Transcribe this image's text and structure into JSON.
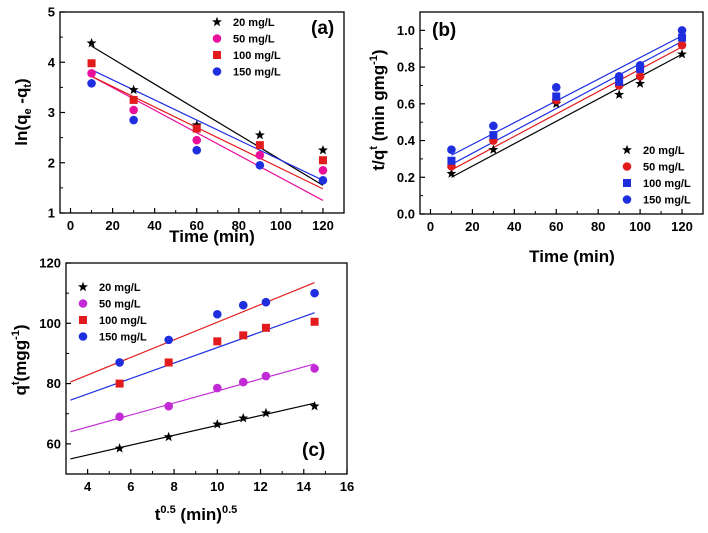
{
  "chart_data": [
    {
      "type": "scatter",
      "panel_label": "(a)",
      "title": "",
      "xlabel": "Time (min)",
      "ylabel_parts": [
        "ln(q",
        "e",
        " -q",
        "t",
        ")"
      ],
      "xlim": [
        -5,
        130
      ],
      "ylim": [
        1,
        5
      ],
      "xticks": [
        0,
        20,
        40,
        60,
        80,
        100,
        120
      ],
      "yticks": [
        1,
        2,
        3,
        4,
        5
      ],
      "grid": false,
      "legend_position": "top-right",
      "series": [
        {
          "name": "20 mg/L",
          "marker": "star",
          "color": "#000000",
          "x": [
            10,
            30,
            60,
            90,
            120
          ],
          "y": [
            4.38,
            3.45,
            2.75,
            2.55,
            2.25
          ],
          "fit": [
            [
              10,
              4.32
            ],
            [
              120,
              1.55
            ]
          ]
        },
        {
          "name": "50 mg/L",
          "marker": "circle",
          "color": "#e8109b",
          "x": [
            10,
            30,
            60,
            90,
            120
          ],
          "y": [
            3.78,
            3.05,
            2.45,
            2.15,
            1.85
          ],
          "fit": [
            [
              10,
              3.72
            ],
            [
              120,
              1.25
            ]
          ]
        },
        {
          "name": "100 mg/L",
          "marker": "square",
          "color": "#e21c1c",
          "x": [
            10,
            30,
            60,
            90,
            120
          ],
          "y": [
            3.98,
            3.25,
            2.68,
            2.35,
            2.05
          ],
          "fit": [
            [
              10,
              3.72
            ],
            [
              120,
              1.48
            ]
          ]
        },
        {
          "name": "150 mg/L",
          "marker": "circle",
          "color": "#1f2fe0",
          "x": [
            10,
            30,
            60,
            90,
            120
          ],
          "y": [
            3.58,
            2.85,
            2.25,
            1.95,
            1.65
          ],
          "fit": [
            [
              10,
              3.85
            ],
            [
              120,
              1.65
            ]
          ]
        }
      ]
    },
    {
      "type": "scatter",
      "panel_label": "(b)",
      "title": "",
      "xlabel": "Time (min)",
      "ylabel_parts": [
        "t/q",
        "t",
        " (min gmg",
        "-1",
        ")"
      ],
      "xlim": [
        -5,
        130
      ],
      "ylim": [
        0,
        1.1
      ],
      "xticks": [
        0,
        20,
        40,
        60,
        80,
        100,
        120
      ],
      "yticks": [
        0.0,
        0.2,
        0.4,
        0.6,
        0.8,
        1.0
      ],
      "grid": false,
      "legend_position": "bottom-right",
      "series": [
        {
          "name": "20 mg/L",
          "marker": "star",
          "color": "#000000",
          "x": [
            10,
            30,
            60,
            90,
            100,
            120
          ],
          "y": [
            0.22,
            0.35,
            0.6,
            0.65,
            0.71,
            0.87
          ],
          "fit": [
            [
              10,
              0.2
            ],
            [
              120,
              0.87
            ]
          ]
        },
        {
          "name": "50 mg/L",
          "marker": "circle",
          "color": "#e21c1c",
          "x": [
            10,
            30,
            60,
            90,
            100,
            120
          ],
          "y": [
            0.26,
            0.4,
            0.62,
            0.7,
            0.75,
            0.92
          ],
          "fit": [
            [
              10,
              0.24
            ],
            [
              120,
              0.91
            ]
          ]
        },
        {
          "name": "100 mg/L",
          "marker": "square",
          "color": "#1f2fe0",
          "x": [
            10,
            30,
            60,
            90,
            100,
            120
          ],
          "y": [
            0.29,
            0.43,
            0.64,
            0.72,
            0.79,
            0.96
          ],
          "fit": [
            [
              10,
              0.27
            ],
            [
              120,
              0.94
            ]
          ]
        },
        {
          "name": "150 mg/L",
          "marker": "circle",
          "color": "#1f2fe0",
          "x": [
            10,
            30,
            60,
            90,
            100,
            120
          ],
          "y": [
            0.35,
            0.48,
            0.69,
            0.75,
            0.81,
            1.0
          ],
          "fit": [
            [
              10,
              0.32
            ],
            [
              120,
              0.97
            ]
          ]
        }
      ]
    },
    {
      "type": "scatter",
      "panel_label": "(c)",
      "title": "",
      "xlabel_parts": [
        "t",
        "0.5",
        " (min)",
        "0.5"
      ],
      "ylabel_parts": [
        "q",
        "t",
        "(mgg",
        "-1",
        ")"
      ],
      "xlim": [
        3,
        16
      ],
      "ylim": [
        50,
        120
      ],
      "xticks": [
        4,
        6,
        8,
        10,
        12,
        14,
        16
      ],
      "yticks": [
        60,
        80,
        100,
        120
      ],
      "grid": false,
      "legend_position": "top-left",
      "series": [
        {
          "name": "20 mg/L",
          "marker": "star",
          "color": "#000000",
          "x": [
            5.48,
            7.75,
            10.0,
            11.2,
            12.25,
            14.5
          ],
          "y": [
            58.5,
            62.3,
            66.5,
            68.5,
            70.2,
            72.5
          ],
          "fit": [
            [
              3.2,
              55.0
            ],
            [
              14.5,
              73.5
            ]
          ]
        },
        {
          "name": "50 mg/L",
          "marker": "circle",
          "color": "#c22ad6",
          "x": [
            5.48,
            7.75,
            10.0,
            11.2,
            12.25,
            14.5
          ],
          "y": [
            69,
            72.5,
            78.5,
            80.5,
            82.5,
            85
          ],
          "fit": [
            [
              3.2,
              64.0
            ],
            [
              14.5,
              86.5
            ]
          ]
        },
        {
          "name": "100 mg/L",
          "marker": "square",
          "color": "#e21c1c",
          "x": [
            5.48,
            7.75,
            10.0,
            11.2,
            12.25,
            14.5
          ],
          "y": [
            80,
            87,
            94,
            96,
            98.5,
            100.5
          ],
          "fit": [
            [
              3.2,
              80.5
            ],
            [
              14.5,
              113.5
            ]
          ]
        },
        {
          "name": "150 mg/L",
          "marker": "circle",
          "color": "#1f2fe0",
          "x": [
            5.48,
            7.75,
            10.0,
            11.2,
            12.25,
            14.5
          ],
          "y": [
            87,
            94.5,
            103,
            106,
            107,
            110
          ],
          "fit": [
            [
              3.2,
              74.5
            ],
            [
              14.5,
              103.5
            ]
          ]
        }
      ]
    }
  ]
}
